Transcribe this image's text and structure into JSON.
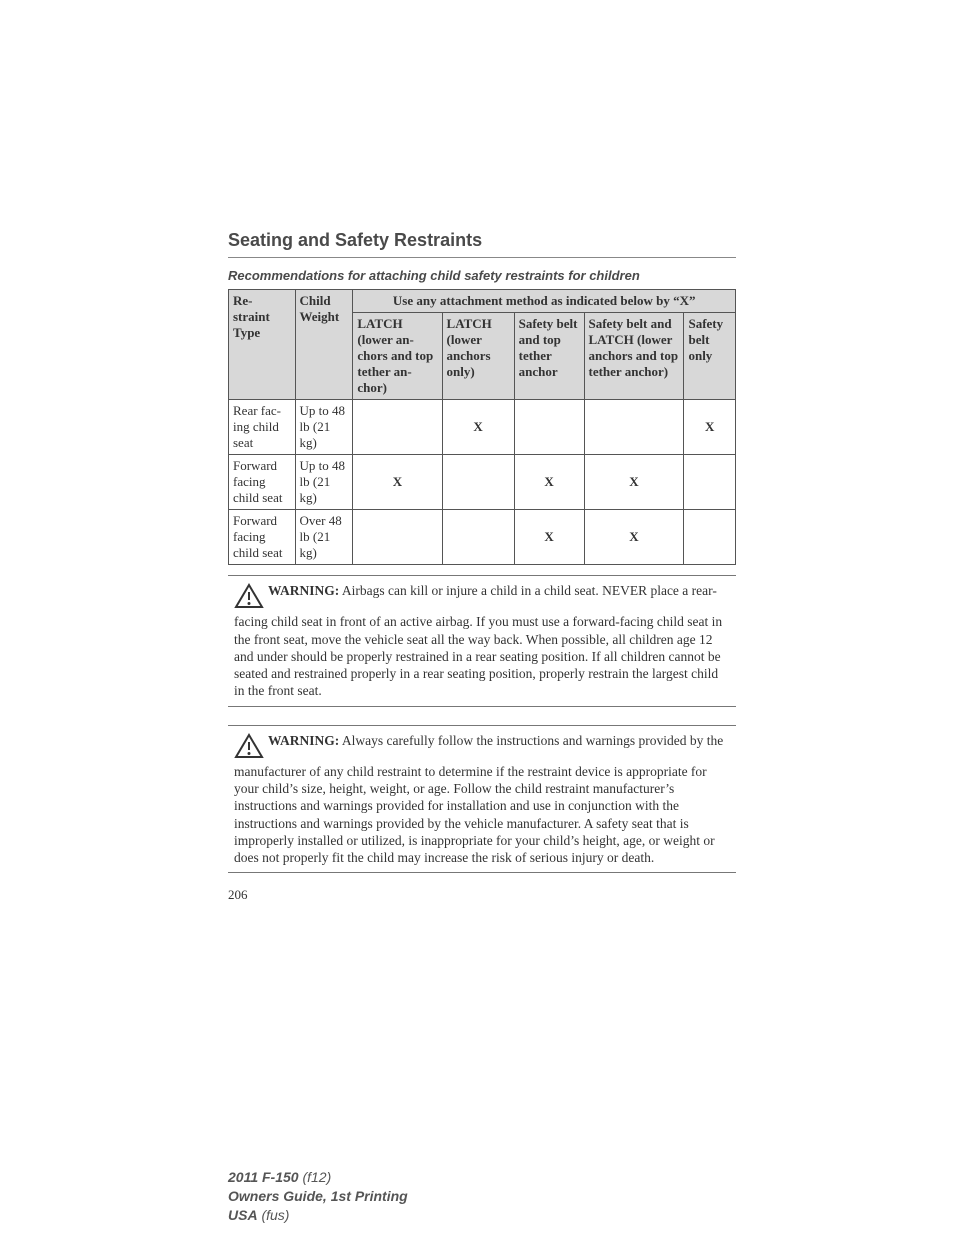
{
  "section_title": "Seating and Safety Restraints",
  "table_caption": "Recommendations for attaching child safety restraints for children",
  "table": {
    "header_rowspan": {
      "restraint_type": "Re-\nstraint Type",
      "child_weight": "Child Weight"
    },
    "spanner": "Use any attachment method as indicated below by “X”",
    "columns": [
      "LATCH (lower an-\nchors and top tether an-\nchor)",
      "LATCH (lower anchors only)",
      "Safety belt and top tether anchor",
      "Safety belt and LATCH (lower anchors and top tether anchor)",
      "Safety belt only"
    ],
    "rows": [
      {
        "type": "Rear fac-\ning child seat",
        "weight": "Up to 48 lb (21 kg)",
        "marks": [
          "",
          "X",
          "",
          "",
          "X"
        ]
      },
      {
        "type": "Forward facing child seat",
        "weight": "Up to 48 lb (21 kg)",
        "marks": [
          "X",
          "",
          "X",
          "X",
          ""
        ]
      },
      {
        "type": "Forward facing child seat",
        "weight": "Over 48 lb (21 kg)",
        "marks": [
          "",
          "",
          "X",
          "X",
          ""
        ]
      }
    ]
  },
  "warnings": [
    {
      "label": "WARNING:",
      "text": "Airbags can kill or injure a child in a child seat. NEVER place a rear-facing child seat in front of an active airbag. If you must use a forward-facing child seat in the front seat, move the vehicle seat all the way back. When possible, all children age 12 and under should be properly restrained in a rear seating position. If all children cannot be seated and restrained properly in a rear seating position, properly restrain the largest child in the front seat."
    },
    {
      "label": "WARNING:",
      "text": "Always carefully follow the instructions and warnings provided by the manufacturer of any child restraint to determine if the restraint device is appropriate for your child’s size, height, weight, or age. Follow the child restraint manufacturer’s instructions and warnings provided for installation and use in conjunction with the instructions and warnings provided by the vehicle manufacturer. A safety seat that is improperly installed or utilized, is inappropriate for your child’s height, age, or weight or does not properly fit the child may increase the risk of serious injury or death."
    }
  ],
  "page_number": "206",
  "footer": {
    "line1_bold": "2011 F-150",
    "line1_ital": "(f12)",
    "line2": "Owners Guide, 1st Printing",
    "line3_bold": "USA",
    "line3_ital": "(fus)"
  },
  "style": {
    "header_bg": "#d8d8d8",
    "border_color": "#555555",
    "text_color": "#333333",
    "title_color": "#4a4a4a",
    "footer_color": "#555555",
    "icon_stroke": "#333333",
    "icon_fill": "#ffffff"
  }
}
